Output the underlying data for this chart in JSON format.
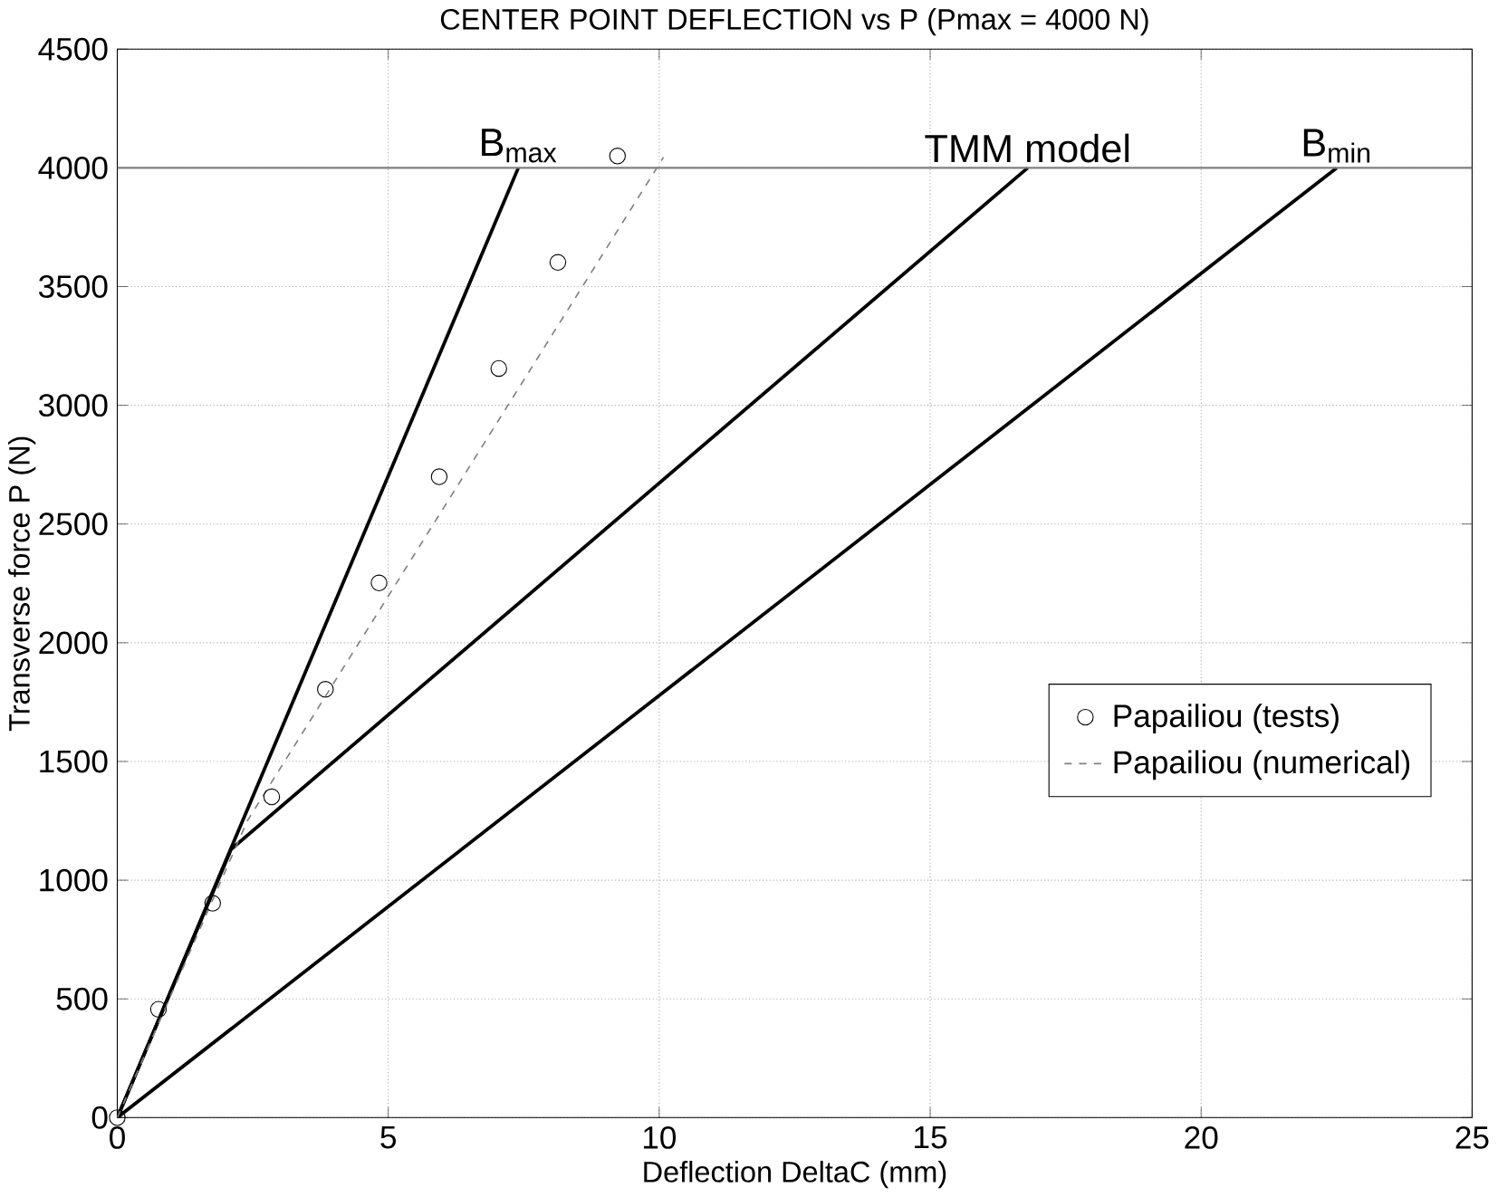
{
  "chart_data": {
    "type": "line",
    "title": "CENTER POINT DEFLECTION vs P (Pmax = 4000 N)",
    "xlabel": "Deflection DeltaC (mm)",
    "ylabel": "Transverse force P (N)",
    "xlim": [
      0,
      25
    ],
    "ylim": [
      0,
      4500
    ],
    "xticks": [
      0,
      5,
      10,
      15,
      20,
      25
    ],
    "yticks": [
      0,
      500,
      1000,
      1500,
      2000,
      2500,
      3000,
      3500,
      4000,
      4500
    ],
    "grid": true,
    "legend": "right",
    "series": [
      {
        "name": "B$_{max}$",
        "color": "#000000",
        "line_style": "solid",
        "x": [
          0,
          7.4
        ],
        "values": [
          0,
          4000
        ]
      },
      {
        "name": "TMM model",
        "color": "#000000",
        "line_style": "solid",
        "x": [
          0,
          2.1,
          16.8
        ],
        "values": [
          0,
          1130,
          4000
        ]
      },
      {
        "name": "B$_{min}$",
        "color": "#000000",
        "line_style": "solid",
        "x": [
          0,
          22.5
        ],
        "values": [
          0,
          4000
        ]
      },
      {
        "type": "scatter",
        "name": "Papailiou (tests)",
        "color": "#000000",
        "marker": "circle",
        "x": [
          0,
          0.76,
          1.76,
          2.85,
          3.84,
          4.83,
          5.94,
          7.04,
          8.13,
          9.23
        ],
        "values": [
          0,
          456,
          903,
          1351,
          1804,
          2252,
          2699,
          3155,
          3602,
          4050
        ]
      },
      {
        "name": "Papailiou (numerical)",
        "color": "#808080",
        "line_style": "dashed",
        "x": [
          0,
          2.4,
          10.08
        ],
        "values": [
          0,
          1250,
          4045
        ]
      }
    ],
    "ref_lines": [
      {
        "axis": "y",
        "value": 4000,
        "color": "#808080"
      }
    ]
  }
}
